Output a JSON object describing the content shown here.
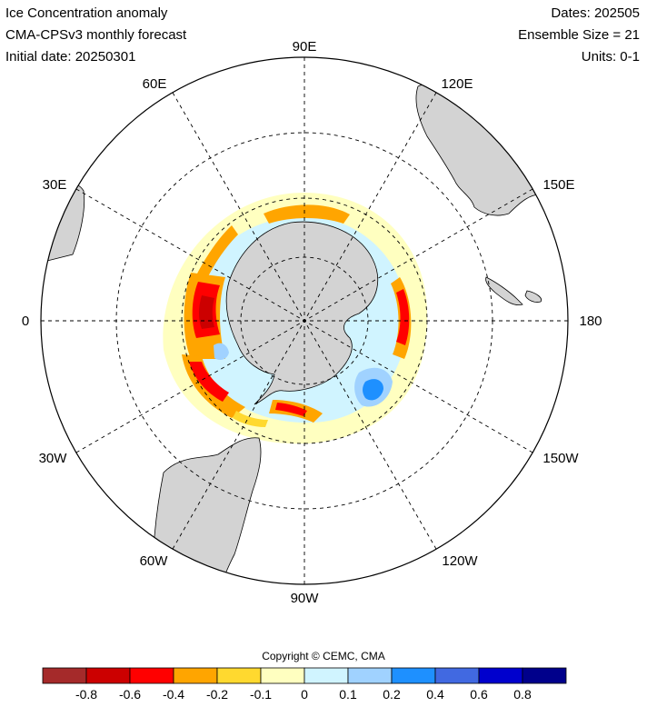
{
  "header": {
    "title": "Ice Concentration anomaly",
    "subtitle": "CMA-CPSv3 monthly forecast",
    "initial_date": "Initial date: 20250301",
    "dates": "Dates: 202505",
    "ensemble": "Ensemble Size = 21",
    "units": "Units: 0-1"
  },
  "map": {
    "projection": "south-polar-stereographic",
    "longitude_labels": [
      "90E",
      "120E",
      "150E",
      "180",
      "150W",
      "120W",
      "90W",
      "60W",
      "30W",
      "0",
      "30E",
      "60E"
    ],
    "land_color": "#d3d3d3",
    "grid_style": "dashed"
  },
  "legend": {
    "copyright": "Copyright © CEMC, CMA",
    "colors": [
      "#a52a2a",
      "#cc0000",
      "#ff0000",
      "#ffa500",
      "#ffd92f",
      "#ffffc0",
      "#d0f4ff",
      "#a0d2ff",
      "#1e90ff",
      "#4169e1",
      "#0000cd",
      "#00008b"
    ],
    "tick_labels": [
      "-0.8",
      "-0.6",
      "-0.4",
      "-0.2",
      "-0.1",
      "0",
      "0.1",
      "0.2",
      "0.4",
      "0.6",
      "0.8"
    ]
  }
}
